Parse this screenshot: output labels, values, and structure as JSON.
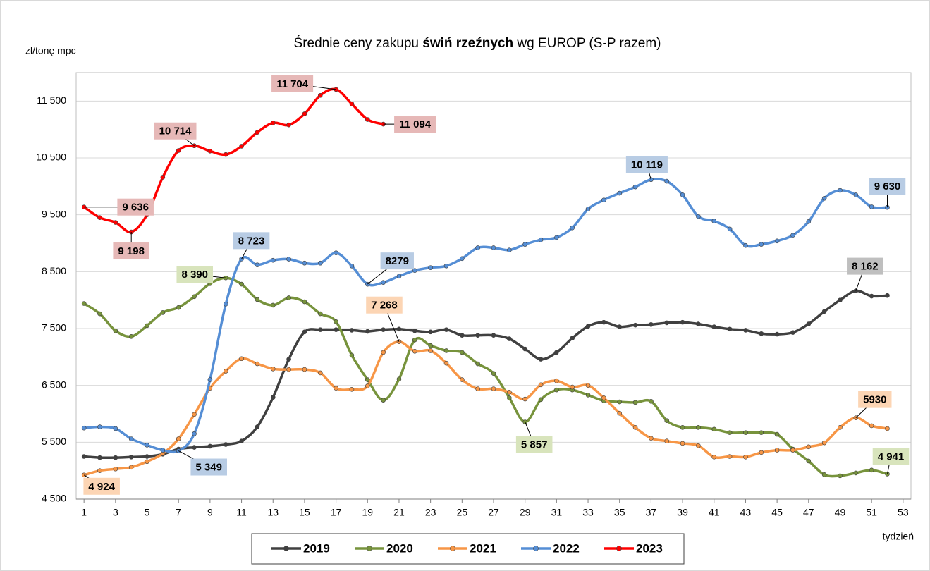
{
  "chart_data": {
    "type": "line",
    "title": [
      "Średnie ceny zakupu ",
      "świń rzeźnych",
      " wg EUROP (S-P razem)"
    ],
    "y_label": "zł/tonę mpc",
    "x_label": "tydzień",
    "x": [
      1,
      2,
      3,
      4,
      5,
      6,
      7,
      8,
      9,
      10,
      11,
      12,
      13,
      14,
      15,
      16,
      17,
      18,
      19,
      20,
      21,
      22,
      23,
      24,
      25,
      26,
      27,
      28,
      29,
      30,
      31,
      32,
      33,
      34,
      35,
      36,
      37,
      38,
      39,
      40,
      41,
      42,
      43,
      44,
      45,
      46,
      47,
      48,
      49,
      50,
      51,
      52
    ],
    "xlim": [
      0.5,
      53.5
    ],
    "xticks": [
      1,
      3,
      5,
      7,
      9,
      11,
      13,
      15,
      17,
      19,
      21,
      23,
      25,
      27,
      29,
      31,
      33,
      35,
      37,
      39,
      41,
      43,
      45,
      47,
      49,
      51,
      53
    ],
    "ylim": [
      4500,
      12000
    ],
    "yticks": [
      {
        "value": 4500,
        "label": "4 500"
      },
      {
        "value": 5500,
        "label": "5 500"
      },
      {
        "value": 6500,
        "label": "6 500"
      },
      {
        "value": 7500,
        "label": "7 500"
      },
      {
        "value": 8500,
        "label": "8 500"
      },
      {
        "value": 9500,
        "label": "9 500"
      },
      {
        "value": 10500,
        "label": "10 500"
      },
      {
        "value": 11500,
        "label": "11 500"
      }
    ],
    "grid": true,
    "series": [
      {
        "name": "2019",
        "color": "#404040",
        "label_color": "#bfbfbf",
        "values": [
          5250,
          5230,
          5230,
          5240,
          5250,
          5290,
          5380,
          5410,
          5430,
          5460,
          5520,
          5770,
          6290,
          6960,
          7440,
          7480,
          7480,
          7470,
          7450,
          7480,
          7490,
          7460,
          7440,
          7480,
          7380,
          7380,
          7380,
          7320,
          7140,
          6960,
          7080,
          7330,
          7540,
          7610,
          7530,
          7560,
          7570,
          7600,
          7610,
          7580,
          7530,
          7490,
          7470,
          7410,
          7400,
          7430,
          7580,
          7800,
          8000,
          8162,
          8070,
          8080
        ],
        "value_labels": [
          null,
          null,
          null,
          null,
          null,
          null,
          null,
          null,
          null,
          null,
          null,
          null,
          null,
          null,
          null,
          null,
          null,
          null,
          null,
          null,
          null,
          null,
          null,
          null,
          null,
          null,
          null,
          null,
          null,
          null,
          null,
          null,
          null,
          null,
          null,
          null,
          null,
          null,
          null,
          null,
          null,
          null,
          null,
          null,
          null,
          null,
          null,
          null,
          null,
          "8 162",
          null,
          null
        ]
      },
      {
        "name": "2020",
        "color": "#77933c",
        "label_color": "#d8e4bc",
        "values": [
          7940,
          7760,
          7460,
          7360,
          7550,
          7780,
          7870,
          8060,
          8290,
          8390,
          8280,
          8010,
          7910,
          8040,
          7970,
          7760,
          7620,
          7030,
          6600,
          6240,
          6610,
          7300,
          7200,
          7110,
          7080,
          6880,
          6710,
          6280,
          5857,
          6250,
          6420,
          6420,
          6330,
          6230,
          6210,
          6200,
          6220,
          5880,
          5760,
          5760,
          5730,
          5670,
          5670,
          5670,
          5640,
          5380,
          5170,
          4930,
          4910,
          4960,
          5010,
          4941
        ],
        "value_labels": [
          null,
          null,
          null,
          null,
          null,
          null,
          null,
          null,
          null,
          "8 390",
          null,
          null,
          null,
          null,
          null,
          null,
          null,
          null,
          null,
          null,
          null,
          null,
          null,
          null,
          null,
          null,
          null,
          null,
          "5 857",
          null,
          null,
          null,
          null,
          null,
          null,
          null,
          null,
          null,
          null,
          null,
          null,
          null,
          null,
          null,
          null,
          null,
          null,
          null,
          null,
          null,
          null,
          "4 941"
        ]
      },
      {
        "name": "2021",
        "color": "#f79646",
        "label_color": "#fcd5b4",
        "values": [
          4924,
          5000,
          5030,
          5060,
          5160,
          5300,
          5560,
          5990,
          6450,
          6750,
          6970,
          6880,
          6790,
          6780,
          6780,
          6720,
          6450,
          6430,
          6490,
          7080,
          7268,
          7100,
          7110,
          6890,
          6600,
          6440,
          6440,
          6380,
          6260,
          6510,
          6580,
          6470,
          6500,
          6280,
          6010,
          5760,
          5570,
          5520,
          5480,
          5440,
          5240,
          5250,
          5240,
          5320,
          5360,
          5360,
          5420,
          5490,
          5760,
          5930,
          5790,
          5740
        ],
        "value_labels": [
          "4 924",
          null,
          null,
          null,
          null,
          null,
          null,
          null,
          null,
          null,
          null,
          null,
          null,
          null,
          null,
          null,
          null,
          null,
          null,
          null,
          "7 268",
          null,
          null,
          null,
          null,
          null,
          null,
          null,
          null,
          null,
          null,
          null,
          null,
          null,
          null,
          null,
          null,
          null,
          null,
          null,
          null,
          null,
          null,
          null,
          null,
          null,
          null,
          null,
          null,
          "5930",
          null,
          null
        ]
      },
      {
        "name": "2022",
        "color": "#558ed5",
        "label_color": "#b8cce4",
        "values": [
          5750,
          5770,
          5740,
          5560,
          5450,
          5360,
          5349,
          5650,
          6600,
          7930,
          8723,
          8620,
          8700,
          8720,
          8650,
          8650,
          8830,
          8600,
          8279,
          8310,
          8420,
          8520,
          8570,
          8600,
          8730,
          8920,
          8920,
          8880,
          8980,
          9060,
          9100,
          9270,
          9600,
          9760,
          9880,
          9990,
          10119,
          10090,
          9850,
          9470,
          9390,
          9250,
          8960,
          8980,
          9040,
          9140,
          9380,
          9790,
          9930,
          9850,
          9640,
          9630
        ],
        "value_labels": [
          null,
          null,
          null,
          null,
          null,
          null,
          "5 349",
          null,
          null,
          null,
          "8 723",
          null,
          null,
          null,
          null,
          null,
          null,
          null,
          "8279",
          null,
          null,
          null,
          null,
          null,
          null,
          null,
          null,
          null,
          null,
          null,
          null,
          null,
          null,
          null,
          null,
          null,
          "10 119",
          null,
          null,
          null,
          null,
          null,
          null,
          null,
          null,
          null,
          null,
          null,
          null,
          null,
          null,
          "9 630"
        ]
      },
      {
        "name": "2023",
        "color": "#ff0000",
        "label_color": "#e6b8b7",
        "values": [
          9636,
          9450,
          9365,
          9198,
          9500,
          10160,
          10630,
          10714,
          10620,
          10560,
          10705,
          10950,
          11115,
          11080,
          11275,
          11600,
          11704,
          11450,
          11175,
          11094,
          null,
          null,
          null,
          null,
          null,
          null,
          null,
          null,
          null,
          null,
          null,
          null,
          null,
          null,
          null,
          null,
          null,
          null,
          null,
          null,
          null,
          null,
          null,
          null,
          null,
          null,
          null,
          null,
          null,
          null,
          null,
          null
        ],
        "value_labels": [
          "9 636",
          null,
          null,
          "9 198",
          null,
          null,
          null,
          "10 714",
          null,
          null,
          null,
          null,
          null,
          null,
          null,
          null,
          "11 704",
          null,
          null,
          "11 094",
          null,
          null,
          null,
          null,
          null,
          null,
          null,
          null,
          null,
          null,
          null,
          null,
          null,
          null,
          null,
          null,
          null,
          null,
          null,
          null,
          null,
          null,
          null,
          null,
          null,
          null,
          null,
          null,
          null,
          null,
          null,
          null
        ]
      }
    ]
  }
}
